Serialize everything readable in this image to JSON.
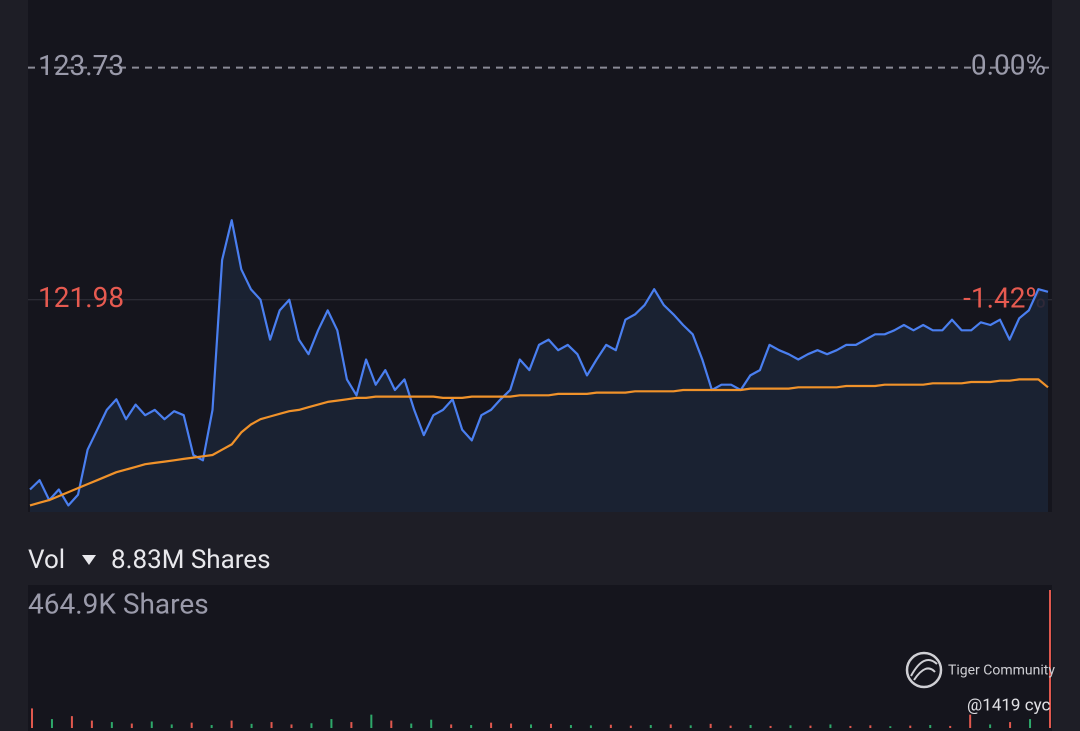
{
  "chart_data": [
    {
      "type": "line",
      "ylim": [
        120.38,
        124.24
      ],
      "yticks": [
        123.73,
        121.98
      ],
      "y2lim": [
        0.41,
        -2.71
      ],
      "y2ticks": [
        {
          "value": 0,
          "label": "0.00%"
        },
        {
          "value": -1.42,
          "label": "-1.42%"
        }
      ],
      "series": [
        {
          "color": "#4a7ff0",
          "values": [
            120.55,
            120.62,
            120.47,
            120.55,
            120.43,
            120.51,
            120.85,
            121.0,
            121.15,
            121.23,
            121.08,
            121.19,
            121.11,
            121.15,
            121.08,
            121.14,
            121.11,
            120.81,
            120.77,
            121.15,
            122.28,
            122.58,
            122.21,
            122.06,
            121.98,
            121.68,
            121.9,
            121.98,
            121.68,
            121.57,
            121.75,
            121.9,
            121.75,
            121.38,
            121.26,
            121.53,
            121.34,
            121.45,
            121.3,
            121.38,
            121.15,
            120.96,
            121.11,
            121.15,
            121.23,
            121.0,
            120.92,
            121.11,
            121.15,
            121.23,
            121.3,
            121.53,
            121.45,
            121.64,
            121.68,
            121.6,
            121.64,
            121.57,
            121.41,
            121.53,
            121.64,
            121.6,
            121.83,
            121.87,
            121.94,
            122.06,
            121.94,
            121.87,
            121.79,
            121.72,
            121.53,
            121.3,
            121.34,
            121.34,
            121.3,
            121.41,
            121.45,
            121.64,
            121.6,
            121.57,
            121.53,
            121.57,
            121.6,
            121.57,
            121.6,
            121.64,
            121.64,
            121.68,
            121.72,
            121.72,
            121.75,
            121.79,
            121.75,
            121.79,
            121.75,
            121.75,
            121.83,
            121.75,
            121.75,
            121.81,
            121.79,
            121.83,
            121.68,
            121.84,
            121.9,
            122.06,
            122.04
          ]
        },
        {
          "color": "#f0922a",
          "values": [
            120.43,
            120.45,
            120.47,
            120.5,
            120.53,
            120.56,
            120.59,
            120.62,
            120.65,
            120.68,
            120.7,
            120.72,
            120.74,
            120.75,
            120.76,
            120.77,
            120.78,
            120.79,
            120.8,
            120.81,
            120.85,
            120.89,
            120.98,
            121.04,
            121.08,
            121.1,
            121.12,
            121.14,
            121.15,
            121.17,
            121.19,
            121.21,
            121.22,
            121.23,
            121.24,
            121.24,
            121.25,
            121.25,
            121.25,
            121.25,
            121.25,
            121.25,
            121.25,
            121.24,
            121.24,
            121.24,
            121.25,
            121.25,
            121.25,
            121.25,
            121.25,
            121.26,
            121.26,
            121.26,
            121.26,
            121.27,
            121.27,
            121.27,
            121.27,
            121.28,
            121.28,
            121.28,
            121.28,
            121.29,
            121.29,
            121.29,
            121.29,
            121.29,
            121.3,
            121.3,
            121.3,
            121.3,
            121.3,
            121.3,
            121.3,
            121.31,
            121.31,
            121.31,
            121.31,
            121.31,
            121.32,
            121.32,
            121.32,
            121.32,
            121.32,
            121.33,
            121.33,
            121.33,
            121.33,
            121.34,
            121.34,
            121.34,
            121.34,
            121.34,
            121.35,
            121.35,
            121.35,
            121.35,
            121.36,
            121.36,
            121.36,
            121.37,
            121.37,
            121.38,
            121.38,
            121.38,
            121.32
          ]
        }
      ]
    },
    {
      "type": "bar",
      "title": "Vol",
      "subtitle": "8.83M Shares",
      "ylim": [
        0,
        464900
      ],
      "yticks": [
        {
          "value": 464900,
          "label": "464.9K Shares"
        }
      ],
      "values": [
        66000,
        30000,
        40000,
        25000,
        20000,
        15000,
        22000,
        12000,
        18000,
        10000,
        25000,
        14000,
        20000,
        12000,
        16000,
        30000,
        20000,
        45000,
        25000,
        15000,
        28000,
        12000,
        10000,
        18000,
        15000,
        12000,
        14000,
        10000,
        9000,
        11000,
        8000,
        10000,
        12000,
        9000,
        14000,
        8000,
        10000,
        7000,
        9000,
        8000,
        12000,
        7000,
        9000,
        6000,
        8000,
        10000,
        7000,
        45000,
        12000,
        20000,
        30000,
        464900
      ],
      "colors": [
        "#e0584e",
        "#2ea86a",
        "#e0584e",
        "#e0584e",
        "#2ea86a",
        "#e0584e",
        "#2ea86a",
        "#2ea86a",
        "#e0584e",
        "#2ea86a",
        "#e0584e",
        "#2ea86a",
        "#e0584e",
        "#e0584e",
        "#2ea86a",
        "#2ea86a",
        "#e0584e",
        "#2ea86a",
        "#e0584e",
        "#2ea86a",
        "#2ea86a",
        "#e0584e",
        "#2ea86a",
        "#e0584e",
        "#e0584e",
        "#2ea86a",
        "#e0584e",
        "#2ea86a",
        "#2ea86a",
        "#e0584e",
        "#e0584e",
        "#2ea86a",
        "#e0584e",
        "#2ea86a",
        "#e0584e",
        "#e0584e",
        "#2ea86a",
        "#e0584e",
        "#2ea86a",
        "#e0584e",
        "#2ea86a",
        "#e0584e",
        "#e0584e",
        "#2ea86a",
        "#e0584e",
        "#2ea86a",
        "#e0584e",
        "#e0584e",
        "#2ea86a",
        "#e0584e",
        "#2ea86a",
        "#e0584e"
      ]
    }
  ],
  "watermark": {
    "brand": "Tiger Community",
    "user": "@1419 cyc"
  }
}
